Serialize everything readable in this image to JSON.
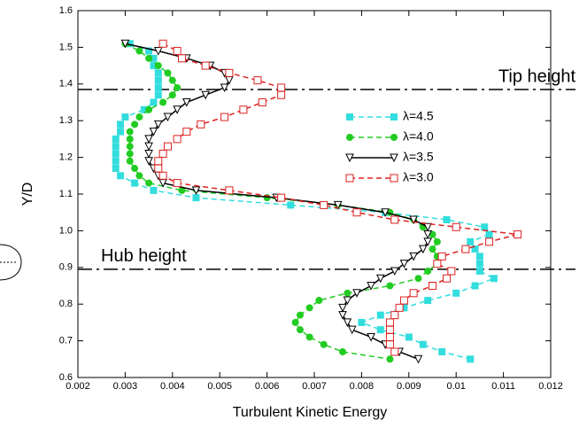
{
  "chart_data": {
    "type": "line",
    "x_label": "Turbulent Kinetic Energy",
    "y_label": "Y/D",
    "xlim": [
      0.002,
      0.012
    ],
    "ylim": [
      0.6,
      1.6
    ],
    "xticks": [
      0.002,
      0.003,
      0.004,
      0.005,
      0.006,
      0.007,
      0.008,
      0.009,
      0.01,
      0.011,
      0.012
    ],
    "yticks": [
      0.6,
      0.7,
      0.8,
      0.9,
      {
        "value": 1,
        "label": "1.0"
      },
      1.1,
      1.2,
      1.3,
      1.4,
      1.5,
      1.6
    ],
    "legend": "right",
    "annotations": [
      {
        "text": "Tip height",
        "y": 1.385,
        "side": "right"
      },
      {
        "text": "Hub height",
        "y": 0.895,
        "side": "left"
      }
    ],
    "series": [
      {
        "name": "λ=4.5",
        "color": "#33dddd",
        "marker": "square",
        "dash": "dashed",
        "x": [
          0.0031,
          0.0035,
          0.0036,
          0.0036,
          0.0037,
          0.0037,
          0.0037,
          0.0037,
          0.0036,
          0.0034,
          0.003,
          0.0029,
          0.0029,
          0.0028,
          0.0028,
          0.0028,
          0.0028,
          0.0028,
          0.0029,
          0.0032,
          0.0036,
          0.0045,
          0.0065,
          0.0085,
          0.0098,
          0.0106,
          0.0107,
          0.0103,
          0.0104,
          0.0105,
          0.0105,
          0.0105,
          0.0108,
          0.0104,
          0.01,
          0.0094,
          0.0089,
          0.0084,
          0.008,
          0.0084,
          0.009,
          0.0093,
          0.0097,
          0.0103
        ],
        "values": [
          1.51,
          1.49,
          1.47,
          1.45,
          1.43,
          1.41,
          1.39,
          1.37,
          1.35,
          1.33,
          1.31,
          1.29,
          1.27,
          1.25,
          1.23,
          1.21,
          1.19,
          1.17,
          1.15,
          1.13,
          1.11,
          1.09,
          1.07,
          1.05,
          1.03,
          1.01,
          0.99,
          0.97,
          0.95,
          0.93,
          0.91,
          0.89,
          0.87,
          0.85,
          0.83,
          0.81,
          0.79,
          0.77,
          0.75,
          0.73,
          0.71,
          0.69,
          0.67,
          0.65
        ]
      },
      {
        "name": "λ=4.0",
        "color": "#22cc22",
        "marker": "circle",
        "dash": "dashed",
        "x": [
          0.003,
          0.0033,
          0.0035,
          0.0037,
          0.0039,
          0.004,
          0.0041,
          0.004,
          0.0038,
          0.0035,
          0.0033,
          0.0032,
          0.0031,
          0.0031,
          0.0031,
          0.0031,
          0.0031,
          0.0032,
          0.0033,
          0.0035,
          0.0042,
          0.006,
          0.0075,
          0.0086,
          0.0091,
          0.0093,
          0.0095,
          0.0096,
          0.0095,
          0.0096,
          0.0096,
          0.0094,
          0.0092,
          0.0086,
          0.0077,
          0.0071,
          0.0069,
          0.0067,
          0.0066,
          0.0067,
          0.0069,
          0.0072,
          0.0076,
          0.0086
        ],
        "values": [
          1.51,
          1.49,
          1.47,
          1.45,
          1.43,
          1.41,
          1.39,
          1.37,
          1.35,
          1.33,
          1.31,
          1.29,
          1.27,
          1.25,
          1.23,
          1.21,
          1.19,
          1.17,
          1.15,
          1.13,
          1.11,
          1.09,
          1.07,
          1.05,
          1.03,
          1.01,
          0.99,
          0.97,
          0.95,
          0.93,
          0.91,
          0.89,
          0.87,
          0.85,
          0.83,
          0.81,
          0.79,
          0.77,
          0.75,
          0.73,
          0.71,
          0.69,
          0.67,
          0.65
        ]
      },
      {
        "name": "λ=3.5",
        "color": "#000000",
        "marker": "triangle-down",
        "dash": "solid",
        "x": [
          0.003,
          0.0037,
          0.0043,
          0.0048,
          0.0051,
          0.0052,
          0.0051,
          0.0047,
          0.0043,
          0.0041,
          0.0039,
          0.0037,
          0.0036,
          0.0035,
          0.0035,
          0.0035,
          0.0035,
          0.0036,
          0.0037,
          0.0038,
          0.0045,
          0.0062,
          0.0075,
          0.0085,
          0.0091,
          0.0094,
          0.0094,
          0.0094,
          0.0093,
          0.0091,
          0.0089,
          0.0087,
          0.0084,
          0.0082,
          0.0079,
          0.0077,
          0.0076,
          0.0076,
          0.0077,
          0.0078,
          0.0082,
          0.0085,
          0.0088,
          0.0092
        ],
        "values": [
          1.51,
          1.49,
          1.47,
          1.45,
          1.43,
          1.41,
          1.39,
          1.37,
          1.35,
          1.33,
          1.31,
          1.29,
          1.27,
          1.25,
          1.23,
          1.21,
          1.19,
          1.17,
          1.15,
          1.13,
          1.11,
          1.09,
          1.07,
          1.05,
          1.03,
          1.01,
          0.99,
          0.97,
          0.95,
          0.93,
          0.91,
          0.89,
          0.87,
          0.85,
          0.83,
          0.81,
          0.79,
          0.77,
          0.75,
          0.73,
          0.71,
          0.69,
          0.67,
          0.65
        ]
      },
      {
        "name": "λ=3.0",
        "color": "#dd2222",
        "marker": "square-open",
        "dash": "dashed",
        "x": [
          0.0038,
          0.0041,
          0.0042,
          0.0047,
          0.0052,
          0.0058,
          0.0063,
          0.0063,
          0.0059,
          0.0055,
          0.0051,
          0.0046,
          0.0043,
          0.0041,
          0.0039,
          0.0038,
          0.0037,
          0.0037,
          0.0038,
          0.0041,
          0.0052,
          0.0063,
          0.0072,
          0.0079,
          0.0087,
          0.01,
          0.0113,
          0.0107,
          0.0102,
          0.0097,
          0.0096,
          0.0099,
          0.0098,
          0.0095,
          0.0091,
          0.0089,
          0.0088,
          0.0087,
          0.0086,
          0.0086,
          0.0086,
          0.0086,
          0.0087
        ],
        "values": [
          1.51,
          1.49,
          1.47,
          1.45,
          1.43,
          1.41,
          1.39,
          1.37,
          1.35,
          1.33,
          1.31,
          1.29,
          1.27,
          1.25,
          1.23,
          1.21,
          1.19,
          1.17,
          1.15,
          1.13,
          1.11,
          1.09,
          1.07,
          1.05,
          1.03,
          1.01,
          0.99,
          0.97,
          0.95,
          0.93,
          0.91,
          0.89,
          0.87,
          0.85,
          0.83,
          0.81,
          0.79,
          0.77,
          0.75,
          0.73,
          0.71,
          0.69,
          0.67
        ]
      }
    ]
  }
}
